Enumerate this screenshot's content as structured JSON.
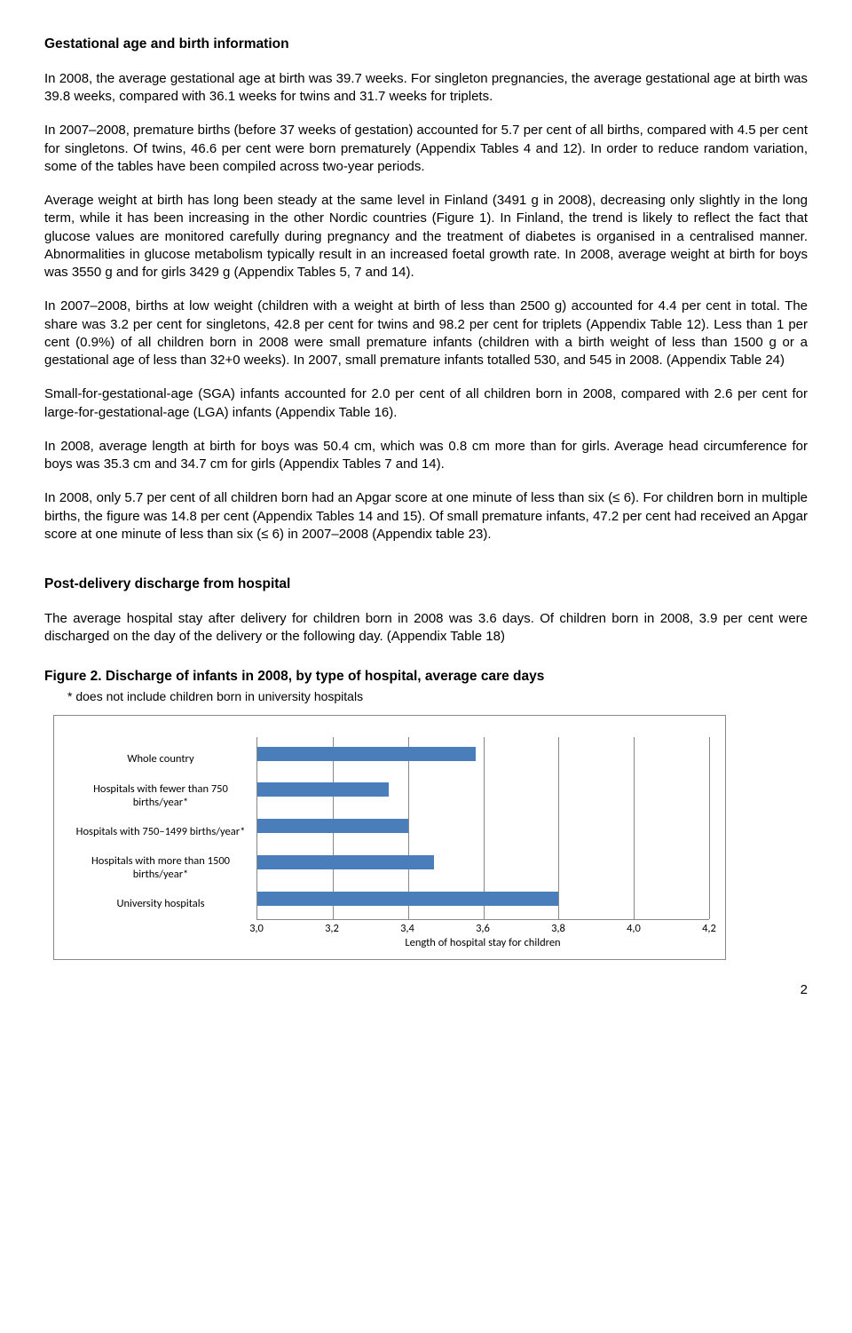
{
  "section1": {
    "title": "Gestational age and birth information",
    "p1": "In 2008, the average gestational age at birth was 39.7 weeks. For singleton pregnancies, the average gestational age at birth was 39.8 weeks, compared with 36.1 weeks for twins and 31.7 weeks for triplets.",
    "p2": "In 2007–2008, premature births (before 37 weeks of gestation) accounted for 5.7 per cent of all births, compared with 4.5 per cent for singletons. Of twins, 46.6 per cent were born prematurely (Appendix Tables 4 and 12). In order to reduce random variation, some of the tables have been compiled across two-year periods.",
    "p3": "Average weight at birth has long been steady at the same level in Finland (3491 g in 2008), decreasing only slightly in the long term, while it has been increasing in the other Nordic countries (Figure 1). In Finland, the trend is likely to reflect the fact that glucose values are monitored carefully during pregnancy and the treatment of diabetes is organised in a centralised manner. Abnormalities in glucose metabolism typically result in an increased foetal growth rate. In 2008, average weight at birth for boys was 3550 g and for girls 3429 g (Appendix Tables 5, 7 and 14).",
    "p4": "In 2007–2008, births at low weight (children with a weight at birth of less than 2500 g) accounted for 4.4 per cent in total. The share was 3.2 per cent for singletons, 42.8 per cent for twins and 98.2 per cent for triplets (Appendix Table 12). Less than 1 per cent (0.9%) of all children born in 2008 were small premature infants (children with a birth weight of less than 1500 g or a gestational age of less than 32+0 weeks). In 2007, small premature infants totalled 530, and 545 in 2008. (Appendix Table 24)",
    "p5": "Small-for-gestational-age (SGA) infants accounted for 2.0 per cent of all children born in 2008, compared with 2.6 per cent for large-for-gestational-age (LGA) infants (Appendix Table 16).",
    "p6": "In 2008, average length at birth for boys was 50.4 cm, which was 0.8 cm more than for girls. Average head circumference for boys was 35.3 cm and 34.7 cm for girls (Appendix Tables 7 and 14).",
    "p7": "In 2008, only 5.7 per cent of all children born had an Apgar score at one minute of less than six (≤ 6). For children born in multiple births, the figure was 14.8 per cent (Appendix Tables 14 and 15). Of small premature infants, 47.2 per cent had received an Apgar score at one minute of less than six (≤ 6) in 2007–2008 (Appendix table 23)."
  },
  "section2": {
    "title": "Post-delivery discharge from hospital",
    "p1": "The average hospital stay after delivery for children born in 2008 was 3.6 days. Of children born in 2008, 3.9 per cent were discharged on the day of the delivery or the following day. (Appendix Table 18)"
  },
  "figure": {
    "title": "Figure 2. Discharge of infants in 2008, by type of hospital, average care days",
    "note": "* does not include children born in university hospitals",
    "chart": {
      "type": "bar",
      "orientation": "horizontal",
      "categories": [
        "Whole country",
        "Hospitals with fewer than 750 births/year*",
        "Hospitals with 750–1499 births/year*",
        "Hospitals with more than 1500 births/year*",
        "University hospitals"
      ],
      "values": [
        3.58,
        3.35,
        3.4,
        3.47,
        3.8
      ],
      "xmin": 3.0,
      "xmax": 4.2,
      "xtick_step": 0.2,
      "xticks": [
        "3,0",
        "3,2",
        "3,4",
        "3,6",
        "3,8",
        "4,0",
        "4,2"
      ],
      "bar_color": "#4a7ebb",
      "grid_color": "#888888",
      "background_color": "#ffffff",
      "category_fontsize": 12.5,
      "tick_fontsize": 12.5,
      "axis_title": "Length of hospital stay for children",
      "axis_title_fontsize": 12.5
    }
  },
  "page_number": "2"
}
